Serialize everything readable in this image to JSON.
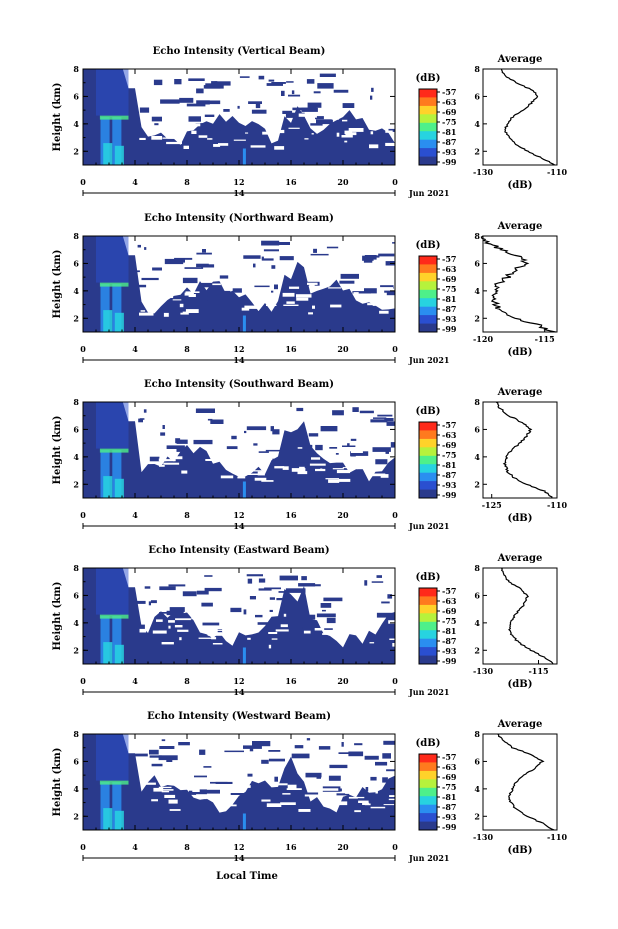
{
  "figure": {
    "xlabel": "Local Time",
    "date_label": "Jun 2021",
    "day_label": "14",
    "colorbar_label": "(dB)",
    "average_title": "Average",
    "average_xlabel": "(dB)",
    "height_label": "Height (km)"
  },
  "chart_data": [
    {
      "type": "heatmap",
      "title": "Echo Intensity (Vertical Beam)",
      "xlabel": "",
      "ylabel": "Height (km)",
      "x_ticks": [
        "0",
        "4",
        "8",
        "12",
        "16",
        "20",
        "0"
      ],
      "y_ticks": [
        "2",
        "4",
        "6",
        "8"
      ],
      "xlim": [
        0,
        24
      ],
      "ylim": [
        1,
        8
      ],
      "colorbar": {
        "label": "(dB)",
        "ticks": [
          "-57",
          "-63",
          "-69",
          "-75",
          "-81",
          "-87",
          "-93",
          "-99"
        ]
      },
      "average_profile": {
        "title": "Average",
        "xlabel": "(dB)",
        "x_ticks": [
          "-130",
          "-110"
        ],
        "xlim": [
          -130,
          -110
        ],
        "y_ticks": [
          "2",
          "4",
          "6",
          "8"
        ],
        "ylim": [
          1,
          8
        ],
        "height": [
          1.0,
          1.5,
          2.0,
          2.5,
          3.0,
          3.5,
          4.0,
          4.5,
          5.0,
          5.5,
          6.0,
          6.5,
          7.0,
          7.5,
          8.0
        ],
        "values": [
          -110.5,
          -114,
          -118,
          -121,
          -123,
          -124,
          -123.5,
          -122,
          -119,
          -117,
          -115,
          -117,
          -121,
          -124,
          -125
        ]
      }
    },
    {
      "type": "heatmap",
      "title": "Echo Intensity (Northward Beam)",
      "xlabel": "",
      "ylabel": "Height (km)",
      "x_ticks": [
        "0",
        "4",
        "8",
        "12",
        "16",
        "20",
        "0"
      ],
      "y_ticks": [
        "2",
        "4",
        "6",
        "8"
      ],
      "xlim": [
        0,
        24
      ],
      "ylim": [
        1,
        8
      ],
      "colorbar": {
        "label": "(dB)",
        "ticks": [
          "-57",
          "-63",
          "-69",
          "-75",
          "-81",
          "-87",
          "-93",
          "-99"
        ]
      },
      "average_profile": {
        "title": "Average",
        "xlabel": "(dB)",
        "x_ticks": [
          "-120",
          "-115"
        ],
        "xlim": [
          -120,
          -114
        ],
        "y_ticks": [
          "2",
          "4",
          "6",
          "8"
        ],
        "ylim": [
          1,
          8
        ],
        "height": [
          1.0,
          1.5,
          2.0,
          2.5,
          3.0,
          3.5,
          4.0,
          4.5,
          5.0,
          5.5,
          6.0,
          6.5,
          7.0,
          7.5,
          8.0
        ],
        "values": [
          -114.3,
          -115.5,
          -117.5,
          -118.5,
          -119,
          -119.2,
          -119,
          -118.8,
          -118,
          -117.5,
          -116.5,
          -117,
          -118.5,
          -119.5,
          -120
        ]
      }
    },
    {
      "type": "heatmap",
      "title": "Echo Intensity (Southward Beam)",
      "xlabel": "",
      "ylabel": "Height (km)",
      "x_ticks": [
        "0",
        "4",
        "8",
        "12",
        "16",
        "20",
        "0"
      ],
      "y_ticks": [
        "2",
        "4",
        "6",
        "8"
      ],
      "xlim": [
        0,
        24
      ],
      "ylim": [
        1,
        8
      ],
      "colorbar": {
        "label": "(dB)",
        "ticks": [
          "-57",
          "-63",
          "-69",
          "-75",
          "-81",
          "-87",
          "-93",
          "-99"
        ]
      },
      "average_profile": {
        "title": "Average",
        "xlabel": "(dB)",
        "x_ticks": [
          "-125",
          "-110"
        ],
        "xlim": [
          -127,
          -110
        ],
        "y_ticks": [
          "2",
          "4",
          "6",
          "8"
        ],
        "ylim": [
          1,
          8
        ],
        "height": [
          1.0,
          1.5,
          2.0,
          2.5,
          3.0,
          3.5,
          4.0,
          4.5,
          5.0,
          5.5,
          6.0,
          6.5,
          7.0,
          7.5,
          8.0
        ],
        "values": [
          -111,
          -113,
          -117,
          -120,
          -121.5,
          -122,
          -121.5,
          -120.5,
          -118.5,
          -117,
          -116,
          -118,
          -121,
          -123,
          -124
        ]
      }
    },
    {
      "type": "heatmap",
      "title": "Echo Intensity (Eastward Beam)",
      "xlabel": "",
      "ylabel": "Height (km)",
      "x_ticks": [
        "0",
        "4",
        "8",
        "12",
        "16",
        "20",
        "0"
      ],
      "y_ticks": [
        "2",
        "4",
        "6",
        "8"
      ],
      "xlim": [
        0,
        24
      ],
      "ylim": [
        1,
        8
      ],
      "colorbar": {
        "label": "(dB)",
        "ticks": [
          "-57",
          "-63",
          "-69",
          "-75",
          "-81",
          "-87",
          "-93",
          "-99"
        ]
      },
      "average_profile": {
        "title": "Average",
        "xlabel": "(dB)",
        "x_ticks": [
          "-130",
          "-115"
        ],
        "xlim": [
          -130,
          -110
        ],
        "y_ticks": [
          "2",
          "4",
          "6",
          "8"
        ],
        "ylim": [
          1,
          8
        ],
        "height": [
          1.0,
          1.5,
          2.0,
          2.5,
          3.0,
          3.5,
          4.0,
          4.5,
          5.0,
          5.5,
          6.0,
          6.5,
          7.0,
          7.5,
          8.0
        ],
        "values": [
          -111,
          -113.5,
          -117,
          -120,
          -122,
          -123,
          -122.5,
          -121.5,
          -120,
          -118.5,
          -118,
          -120,
          -123,
          -124.5,
          -125
        ]
      }
    },
    {
      "type": "heatmap",
      "title": "Echo Intensity (Westward Beam)",
      "xlabel": "Local Time",
      "ylabel": "Height (km)",
      "x_ticks": [
        "0",
        "4",
        "8",
        "12",
        "16",
        "20",
        "0"
      ],
      "y_ticks": [
        "2",
        "4",
        "6",
        "8"
      ],
      "xlim": [
        0,
        24
      ],
      "ylim": [
        1,
        8
      ],
      "colorbar": {
        "label": "(dB)",
        "ticks": [
          "-57",
          "-63",
          "-69",
          "-75",
          "-81",
          "-87",
          "-93",
          "-99"
        ]
      },
      "average_profile": {
        "title": "Average",
        "xlabel": "(dB)",
        "x_ticks": [
          "-130",
          "-110"
        ],
        "xlim": [
          -130,
          -110
        ],
        "y_ticks": [
          "2",
          "4",
          "6",
          "8"
        ],
        "ylim": [
          1,
          8
        ],
        "height": [
          1.0,
          1.5,
          2.0,
          2.5,
          3.0,
          3.5,
          4.0,
          4.5,
          5.0,
          5.5,
          6.0,
          6.5,
          7.0,
          7.5,
          8.0
        ],
        "values": [
          -111,
          -114,
          -118,
          -121,
          -122.5,
          -123,
          -122,
          -121,
          -119,
          -116,
          -114,
          -117,
          -122,
          -124.5,
          -126
        ]
      }
    }
  ],
  "colors": {
    "background_echo": "#2a3a8c",
    "colorbar": [
      "#ff2a1a",
      "#ff7a1e",
      "#ffd22a",
      "#b6f23c",
      "#4ef08a",
      "#27d3e0",
      "#2a8ef0",
      "#2a4fd0",
      "#2a3a8c"
    ]
  }
}
